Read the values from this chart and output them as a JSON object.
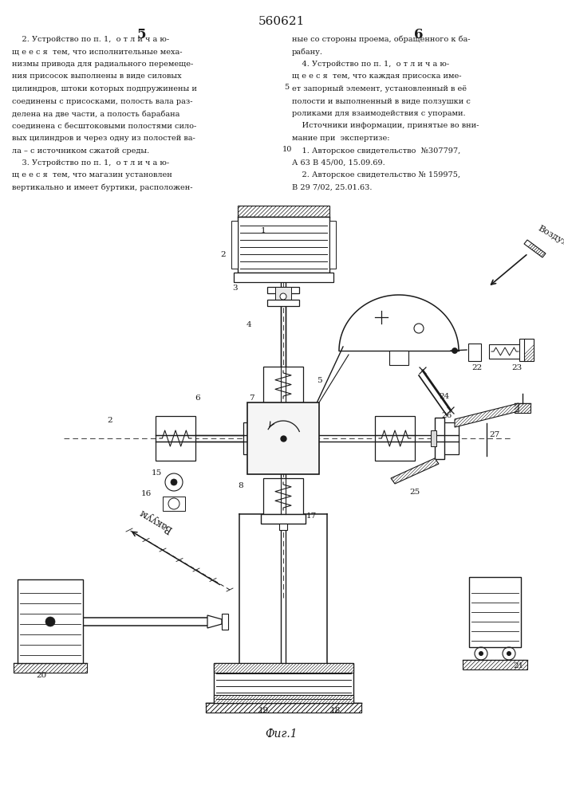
{
  "title": "560621",
  "fig_caption": "Фиг.1",
  "bg_color": "#ffffff",
  "ink_color": "#1a1a1a",
  "text_left": [
    "    2. Устройство по п. 1,  о т л и ч а ю-",
    "щ е е с я  тем, что исполнительные меха-",
    "низмы привода для радиального перемеще-",
    "ния присосок выполнены в виде силовых",
    "цилиндров, штоки которых подпружинены и",
    "соединены с присосками, полость вала раз-",
    "делена на две части, а полость барабана",
    "соединена с бесштоковыми полостями сило-",
    "вых цилиндров и через одну из полостей ва-",
    "ла – с источником сжатой среды.",
    "    3. Устройство по п. 1,  о т л и ч а ю-",
    "щ е е с я  тем, что магазин установлен",
    "вертикально и имеет буртики, расположен-"
  ],
  "text_right": [
    "ные со стороны проема, обращенного к ба-",
    "рабану.",
    "    4. Устройство по п. 1,  о т л и ч а ю-",
    "щ е е с я  тем, что каждая присоска име-",
    "ет запорный элемент, установленный в её",
    "полости и выполненный в виде ползушки с",
    "роликами для взаимодействия с упорами.",
    "    Источники информации, принятые во вни-",
    "мание при  экспертизе:",
    "    1. Авторское свидетельство  №307797,",
    "А 63 В 45/00, 15.09.69.",
    "    2. Авторское свидетельство № 159975,",
    "В 29 7/02, 25.01.63."
  ]
}
